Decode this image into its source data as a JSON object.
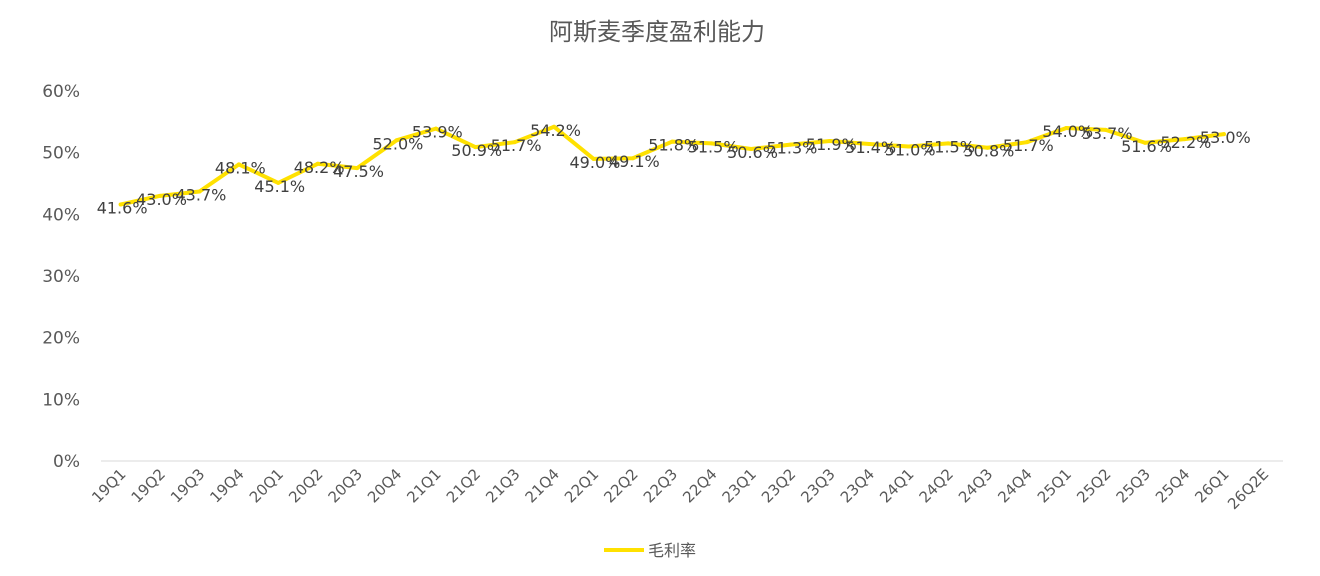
{
  "chart_data": {
    "type": "line",
    "title": "阿斯麦季度盈利能力",
    "xlabel": "",
    "ylabel": "",
    "ylim": [
      0,
      60
    ],
    "yticks": [
      "0%",
      "10%",
      "20%",
      "30%",
      "40%",
      "50%",
      "60%"
    ],
    "categories": [
      "19Q1",
      "19Q2",
      "19Q3",
      "19Q4",
      "20Q1",
      "20Q2",
      "20Q3",
      "20Q4",
      "21Q1",
      "21Q2",
      "21Q3",
      "21Q4",
      "22Q1",
      "22Q2",
      "22Q3",
      "22Q4",
      "23Q1",
      "23Q2",
      "23Q3",
      "23Q4",
      "24Q1",
      "24Q2",
      "24Q3",
      "24Q4",
      "25Q1",
      "25Q2",
      "25Q3",
      "25Q4",
      "26Q1",
      "26Q2E"
    ],
    "series": [
      {
        "name": "毛利率",
        "color": "#FFE100",
        "values": [
          41.6,
          43.0,
          43.7,
          48.1,
          45.1,
          48.2,
          47.5,
          52.0,
          53.9,
          50.9,
          51.7,
          54.2,
          49.0,
          49.1,
          51.8,
          51.5,
          50.6,
          51.3,
          51.9,
          51.4,
          51.0,
          51.5,
          50.8,
          51.7,
          54.0,
          53.7,
          51.6,
          52.2,
          53.0,
          null
        ],
        "labels": [
          "41.6%",
          "43.0%",
          "43.7%",
          "48.1%",
          "45.1%",
          "48.2%",
          "47.5%",
          "52.0%",
          "53.9%",
          "50.9%",
          "51.7%",
          "54.2%",
          "49.0%",
          "49.1%",
          "51.8%",
          "51.5%",
          "50.6%",
          "51.3%",
          "51.9%",
          "51.4%",
          "51.0%",
          "51.5%",
          "50.8%",
          "51.7%",
          "54.0%",
          "53.7%",
          "51.6%",
          "52.2%",
          "53.0%",
          ""
        ]
      }
    ],
    "grid": false,
    "legend": "bottom"
  }
}
